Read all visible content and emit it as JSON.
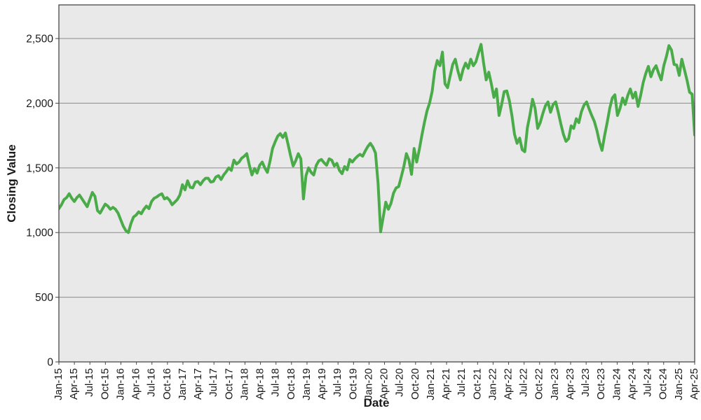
{
  "chart_data": {
    "type": "line",
    "title": "",
    "xlabel": "Date",
    "ylabel": "Closing Value",
    "ylim": [
      0,
      2760
    ],
    "grid": "horizontal-only",
    "legend": "none",
    "yticks": [
      {
        "value": 0,
        "label": "0"
      },
      {
        "value": 500,
        "label": "500"
      },
      {
        "value": 1000,
        "label": "1,000"
      },
      {
        "value": 1500,
        "label": "1,500"
      },
      {
        "value": 2000,
        "label": "2,000"
      },
      {
        "value": 2500,
        "label": "2,500"
      }
    ],
    "x_tick_labels": [
      "Jan-15",
      "Apr-15",
      "Jul-15",
      "Oct-15",
      "Jan-16",
      "Apr-16",
      "Jul-16",
      "Oct-16",
      "Jan-17",
      "Apr-17",
      "Jul-17",
      "Oct-17",
      "Jan-18",
      "Apr-18",
      "Jul-18",
      "Oct-18",
      "Jan-19",
      "Apr-19",
      "Jul-19",
      "Oct-19",
      "Jan-20",
      "Apr-20",
      "Jul-20",
      "Oct-20",
      "Jan-21",
      "Apr-21",
      "Jul-21",
      "Oct-21",
      "Jan-22",
      "Apr-22",
      "Jul-22",
      "Oct-22",
      "Jan-23",
      "Apr-23",
      "Jul-23",
      "Oct-23",
      "Jan-24",
      "Apr-24",
      "Jul-24",
      "Oct-24",
      "Jan-25",
      "Apr-25"
    ],
    "series": [
      {
        "name": "Closing Value",
        "interval": "semi-monthly samples, Jan-2015 through Apr-2025",
        "color": "#4aab49",
        "values": [
          1185,
          1215,
          1255,
          1270,
          1300,
          1265,
          1240,
          1270,
          1290,
          1260,
          1230,
          1200,
          1255,
          1310,
          1280,
          1170,
          1150,
          1185,
          1220,
          1205,
          1180,
          1195,
          1180,
          1150,
          1100,
          1050,
          1015,
          1000,
          1070,
          1120,
          1135,
          1160,
          1145,
          1180,
          1205,
          1185,
          1240,
          1265,
          1275,
          1290,
          1300,
          1260,
          1270,
          1250,
          1215,
          1235,
          1255,
          1290,
          1370,
          1330,
          1400,
          1350,
          1345,
          1390,
          1395,
          1370,
          1400,
          1420,
          1420,
          1390,
          1395,
          1430,
          1440,
          1410,
          1445,
          1470,
          1500,
          1480,
          1560,
          1530,
          1545,
          1575,
          1590,
          1610,
          1520,
          1445,
          1495,
          1460,
          1520,
          1545,
          1500,
          1465,
          1550,
          1650,
          1700,
          1745,
          1765,
          1735,
          1770,
          1685,
          1595,
          1515,
          1555,
          1610,
          1570,
          1260,
          1440,
          1500,
          1465,
          1445,
          1520,
          1555,
          1565,
          1540,
          1520,
          1570,
          1560,
          1515,
          1535,
          1480,
          1455,
          1510,
          1485,
          1565,
          1545,
          1570,
          1590,
          1605,
          1590,
          1630,
          1665,
          1690,
          1660,
          1615,
          1380,
          1005,
          1120,
          1235,
          1180,
          1225,
          1305,
          1345,
          1355,
          1430,
          1510,
          1610,
          1560,
          1450,
          1650,
          1545,
          1640,
          1750,
          1850,
          1940,
          2000,
          2090,
          2250,
          2330,
          2290,
          2395,
          2150,
          2120,
          2210,
          2300,
          2340,
          2250,
          2180,
          2260,
          2310,
          2270,
          2340,
          2290,
          2320,
          2390,
          2455,
          2310,
          2180,
          2240,
          2150,
          2045,
          2110,
          1905,
          1990,
          2090,
          2095,
          2020,
          1905,
          1760,
          1690,
          1730,
          1640,
          1625,
          1810,
          1910,
          2030,
          1960,
          1805,
          1850,
          1920,
          1980,
          2010,
          1930,
          1990,
          2010,
          1930,
          1840,
          1760,
          1705,
          1725,
          1825,
          1805,
          1880,
          1850,
          1935,
          1985,
          2010,
          1955,
          1905,
          1860,
          1790,
          1700,
          1635,
          1750,
          1850,
          1960,
          2040,
          2065,
          1905,
          1960,
          2040,
          1990,
          2060,
          2110,
          2040,
          2085,
          1975,
          2060,
          2160,
          2230,
          2285,
          2205,
          2260,
          2290,
          2230,
          2180,
          2290,
          2360,
          2445,
          2410,
          2300,
          2295,
          2215,
          2340,
          2260,
          2180,
          2085,
          2070,
          1755
        ]
      }
    ],
    "colors": {
      "line": "#4aab49",
      "plot_background": "#e9e9e9",
      "gridline": "#8a8a8a",
      "plot_border": "#474747",
      "text": "#1a1a1a",
      "outer_background": "#ffffff"
    }
  }
}
